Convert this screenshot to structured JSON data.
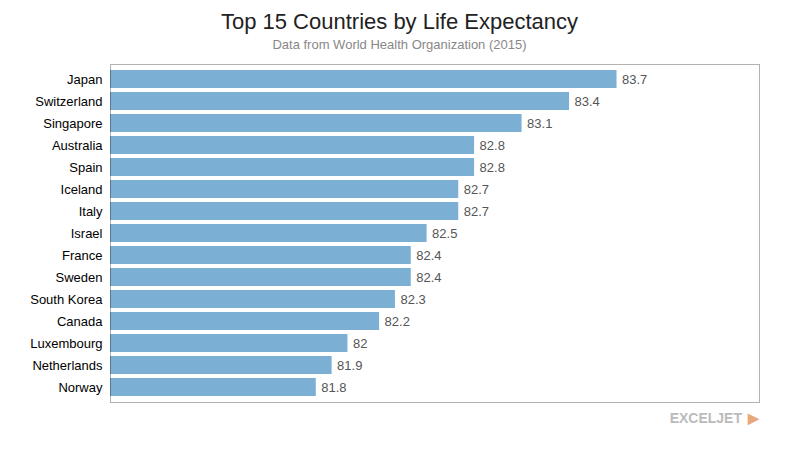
{
  "chart_data": {
    "type": "bar",
    "orientation": "horizontal",
    "title": "Top 15 Countries by Life Expectancy",
    "subtitle": "Data from World Health Organization (2015)",
    "categories": [
      "Norway",
      "Netherlands",
      "Luxembourg",
      "Canada",
      "South Korea",
      "Sweden",
      "France",
      "Israel",
      "Italy",
      "Iceland",
      "Spain",
      "Australia",
      "Singapore",
      "Switzerland",
      "Japan"
    ],
    "values": [
      81.8,
      81.9,
      82.0,
      82.2,
      82.3,
      82.4,
      82.4,
      82.5,
      82.7,
      82.7,
      82.8,
      82.8,
      83.1,
      83.4,
      83.7
    ],
    "color": "#7BAFD4",
    "xlim": [
      80.5,
      84.6
    ],
    "xticks": [],
    "tick_labels": "y",
    "data_labels": true,
    "annotations": [
      {
        "text": "EXCELJET",
        "color": "#BBBBBB"
      },
      {
        "text": "▶",
        "color": "#E8A87C"
      }
    ]
  }
}
